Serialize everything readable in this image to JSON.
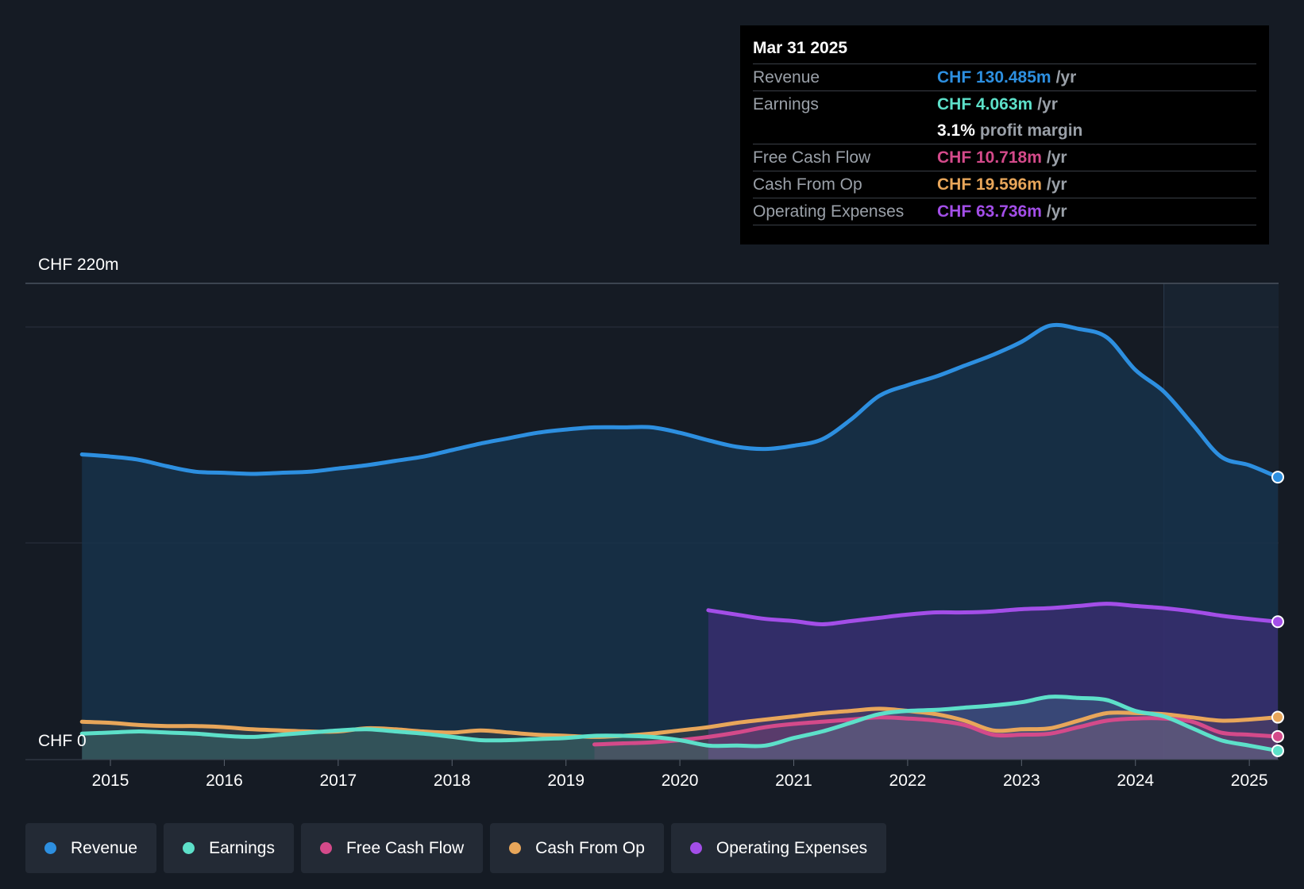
{
  "tooltip": {
    "date": "Mar 31 2025",
    "rows": {
      "revenue": {
        "label": "Revenue",
        "value": "CHF 130.485m",
        "unit": "/yr"
      },
      "earnings": {
        "label": "Earnings",
        "value": "CHF 4.063m",
        "unit": "/yr"
      },
      "margin": {
        "value": "3.1%",
        "text": "profit margin"
      },
      "fcf": {
        "label": "Free Cash Flow",
        "value": "CHF 10.718m",
        "unit": "/yr"
      },
      "cfo": {
        "label": "Cash From Op",
        "value": "CHF 19.596m",
        "unit": "/yr"
      },
      "opex": {
        "label": "Operating Expenses",
        "value": "CHF 63.736m",
        "unit": "/yr"
      }
    }
  },
  "legend": [
    {
      "label": "Revenue",
      "color": "#2d8fe0"
    },
    {
      "label": "Earnings",
      "color": "#5de0c9"
    },
    {
      "label": "Free Cash Flow",
      "color": "#d44a8a"
    },
    {
      "label": "Cash From Op",
      "color": "#e8a65a"
    },
    {
      "label": "Operating Expenses",
      "color": "#a34ee8"
    }
  ],
  "chart_data": {
    "type": "area",
    "title": "",
    "y_max_label": "CHF 220m",
    "y_min_label": "CHF 0",
    "ylim": [
      0,
      220
    ],
    "x_range": [
      2014.7,
      2025.25
    ],
    "forecast_start": 2024.25,
    "x_ticks": [
      "2015",
      "2016",
      "2017",
      "2018",
      "2019",
      "2020",
      "2021",
      "2022",
      "2023",
      "2024",
      "2025"
    ],
    "colors": {
      "revenue": "#2d8fe0",
      "earnings": "#5de0c9",
      "fcf": "#d44a8a",
      "cfo": "#e8a65a",
      "opex": "#a34ee8"
    },
    "series": [
      {
        "key": "revenue",
        "name": "Revenue",
        "points": [
          [
            2014.75,
            141
          ],
          [
            2015.0,
            140
          ],
          [
            2015.25,
            138.5
          ],
          [
            2015.5,
            135.5
          ],
          [
            2015.75,
            133
          ],
          [
            2016.0,
            132.5
          ],
          [
            2016.25,
            132
          ],
          [
            2016.5,
            132.5
          ],
          [
            2016.75,
            133
          ],
          [
            2017.0,
            134.5
          ],
          [
            2017.25,
            136
          ],
          [
            2017.5,
            138
          ],
          [
            2017.75,
            140
          ],
          [
            2018.0,
            143
          ],
          [
            2018.25,
            146
          ],
          [
            2018.5,
            148.5
          ],
          [
            2018.75,
            151
          ],
          [
            2019.0,
            152.5
          ],
          [
            2019.25,
            153.5
          ],
          [
            2019.5,
            153.5
          ],
          [
            2019.75,
            153.5
          ],
          [
            2020.0,
            151
          ],
          [
            2020.25,
            147.5
          ],
          [
            2020.5,
            144.5
          ],
          [
            2020.75,
            143.5
          ],
          [
            2021.0,
            145
          ],
          [
            2021.25,
            148
          ],
          [
            2021.5,
            157
          ],
          [
            2021.75,
            168
          ],
          [
            2022.0,
            173
          ],
          [
            2022.25,
            177
          ],
          [
            2022.5,
            182
          ],
          [
            2022.75,
            187
          ],
          [
            2023.0,
            193
          ],
          [
            2023.25,
            200.5
          ],
          [
            2023.5,
            199
          ],
          [
            2023.75,
            195
          ],
          [
            2024.0,
            180
          ],
          [
            2024.25,
            170
          ],
          [
            2024.5,
            155
          ],
          [
            2024.75,
            140
          ],
          [
            2025.0,
            136
          ],
          [
            2025.25,
            130.5
          ]
        ]
      },
      {
        "key": "opex",
        "name": "Operating Expenses",
        "points": [
          [
            2020.25,
            69
          ],
          [
            2020.5,
            67
          ],
          [
            2020.75,
            65
          ],
          [
            2021.0,
            64
          ],
          [
            2021.25,
            62.5
          ],
          [
            2021.5,
            64
          ],
          [
            2021.75,
            65.5
          ],
          [
            2022.0,
            67
          ],
          [
            2022.25,
            68
          ],
          [
            2022.5,
            68
          ],
          [
            2022.75,
            68.5
          ],
          [
            2023.0,
            69.5
          ],
          [
            2023.25,
            70
          ],
          [
            2023.5,
            71
          ],
          [
            2023.75,
            72
          ],
          [
            2024.0,
            71
          ],
          [
            2024.25,
            70
          ],
          [
            2024.5,
            68.5
          ],
          [
            2024.75,
            66.5
          ],
          [
            2025.0,
            65
          ],
          [
            2025.25,
            63.7
          ]
        ]
      },
      {
        "key": "cfo",
        "name": "Cash From Op",
        "points": [
          [
            2014.75,
            17.5
          ],
          [
            2015.0,
            17
          ],
          [
            2015.25,
            16
          ],
          [
            2015.5,
            15.5
          ],
          [
            2015.75,
            15.5
          ],
          [
            2016.0,
            15
          ],
          [
            2016.25,
            14
          ],
          [
            2016.5,
            13.5
          ],
          [
            2016.75,
            13
          ],
          [
            2017.0,
            13
          ],
          [
            2017.25,
            14.5
          ],
          [
            2017.5,
            14
          ],
          [
            2017.75,
            13
          ],
          [
            2018.0,
            12.5
          ],
          [
            2018.25,
            13.5
          ],
          [
            2018.5,
            12.5
          ],
          [
            2018.75,
            11.5
          ],
          [
            2019.0,
            11
          ],
          [
            2019.25,
            10.5
          ],
          [
            2019.5,
            11
          ],
          [
            2019.75,
            12
          ],
          [
            2020.0,
            13.5
          ],
          [
            2020.25,
            15
          ],
          [
            2020.5,
            17
          ],
          [
            2020.75,
            18.5
          ],
          [
            2021.0,
            20
          ],
          [
            2021.25,
            21.5
          ],
          [
            2021.5,
            22.5
          ],
          [
            2021.75,
            23.5
          ],
          [
            2022.0,
            22.5
          ],
          [
            2022.25,
            21
          ],
          [
            2022.5,
            18
          ],
          [
            2022.75,
            13.5
          ],
          [
            2023.0,
            14
          ],
          [
            2023.25,
            14.5
          ],
          [
            2023.5,
            18
          ],
          [
            2023.75,
            21.5
          ],
          [
            2024.0,
            21.5
          ],
          [
            2024.25,
            21
          ],
          [
            2024.5,
            19.5
          ],
          [
            2024.75,
            18
          ],
          [
            2025.0,
            18.5
          ],
          [
            2025.25,
            19.6
          ]
        ]
      },
      {
        "key": "fcf",
        "name": "Free Cash Flow",
        "points": [
          [
            2019.25,
            7
          ],
          [
            2019.5,
            7.5
          ],
          [
            2019.75,
            8
          ],
          [
            2020.0,
            9
          ],
          [
            2020.25,
            10.5
          ],
          [
            2020.5,
            12.5
          ],
          [
            2020.75,
            15
          ],
          [
            2021.0,
            16.5
          ],
          [
            2021.25,
            17.5
          ],
          [
            2021.5,
            18.5
          ],
          [
            2021.75,
            19.5
          ],
          [
            2022.0,
            19
          ],
          [
            2022.25,
            18
          ],
          [
            2022.5,
            16
          ],
          [
            2022.75,
            11.5
          ],
          [
            2023.0,
            11.5
          ],
          [
            2023.25,
            12
          ],
          [
            2023.5,
            15
          ],
          [
            2023.75,
            18
          ],
          [
            2024.0,
            19
          ],
          [
            2024.25,
            19
          ],
          [
            2024.5,
            17.5
          ],
          [
            2024.75,
            12.5
          ],
          [
            2025.0,
            11.5
          ],
          [
            2025.25,
            10.7
          ]
        ]
      },
      {
        "key": "earnings",
        "name": "Earnings",
        "points": [
          [
            2014.75,
            12
          ],
          [
            2015.0,
            12.5
          ],
          [
            2015.25,
            13
          ],
          [
            2015.5,
            12.5
          ],
          [
            2015.75,
            12
          ],
          [
            2016.0,
            11
          ],
          [
            2016.25,
            10.5
          ],
          [
            2016.5,
            11.5
          ],
          [
            2016.75,
            12.5
          ],
          [
            2017.0,
            13.5
          ],
          [
            2017.25,
            14
          ],
          [
            2017.5,
            13
          ],
          [
            2017.75,
            12
          ],
          [
            2018.0,
            10.5
          ],
          [
            2018.25,
            9
          ],
          [
            2018.5,
            9
          ],
          [
            2018.75,
            9.5
          ],
          [
            2019.0,
            10
          ],
          [
            2019.25,
            11
          ],
          [
            2019.5,
            11
          ],
          [
            2019.75,
            10.5
          ],
          [
            2020.0,
            9
          ],
          [
            2020.25,
            6.5
          ],
          [
            2020.5,
            6.5
          ],
          [
            2020.75,
            6.5
          ],
          [
            2021.0,
            10
          ],
          [
            2021.25,
            13
          ],
          [
            2021.5,
            17
          ],
          [
            2021.75,
            21
          ],
          [
            2022.0,
            22.5
          ],
          [
            2022.25,
            23
          ],
          [
            2022.5,
            24
          ],
          [
            2022.75,
            25
          ],
          [
            2023.0,
            26.5
          ],
          [
            2023.25,
            29
          ],
          [
            2023.5,
            28.5
          ],
          [
            2023.75,
            27.5
          ],
          [
            2024.0,
            22.5
          ],
          [
            2024.25,
            20
          ],
          [
            2024.5,
            14.5
          ],
          [
            2024.75,
            9
          ],
          [
            2025.0,
            6.5
          ],
          [
            2025.25,
            4.1
          ]
        ]
      }
    ]
  }
}
